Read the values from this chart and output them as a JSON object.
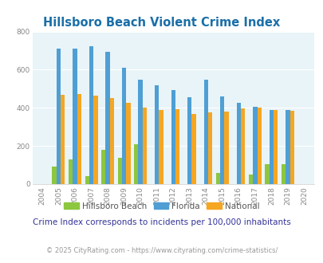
{
  "title": "Hillsboro Beach Violent Crime Index",
  "years": [
    2004,
    2005,
    2006,
    2007,
    2008,
    2009,
    2010,
    2011,
    2012,
    2013,
    2014,
    2015,
    2016,
    2017,
    2018,
    2019,
    2020
  ],
  "hillsboro": [
    0,
    90,
    130,
    40,
    178,
    140,
    210,
    0,
    0,
    0,
    0,
    57,
    0,
    50,
    103,
    103,
    0
  ],
  "florida": [
    0,
    710,
    710,
    725,
    693,
    612,
    547,
    518,
    493,
    456,
    547,
    460,
    428,
    405,
    390,
    388,
    0
  ],
  "national": [
    0,
    468,
    472,
    466,
    453,
    425,
    402,
    387,
    391,
    367,
    377,
    381,
    397,
    400,
    387,
    383,
    0
  ],
  "color_hillsboro": "#8dc63f",
  "color_florida": "#4f9fd4",
  "color_national": "#f5a623",
  "bg_color": "#e8f4f8",
  "title_color": "#1a6fa8",
  "ylim": [
    0,
    800
  ],
  "yticks": [
    0,
    200,
    400,
    600,
    800
  ],
  "subtitle": "Crime Index corresponds to incidents per 100,000 inhabitants",
  "footer": "© 2025 CityRating.com - https://www.cityrating.com/crime-statistics/",
  "subtitle_color": "#333399",
  "footer_color": "#999999",
  "legend_text_color": "#555555"
}
